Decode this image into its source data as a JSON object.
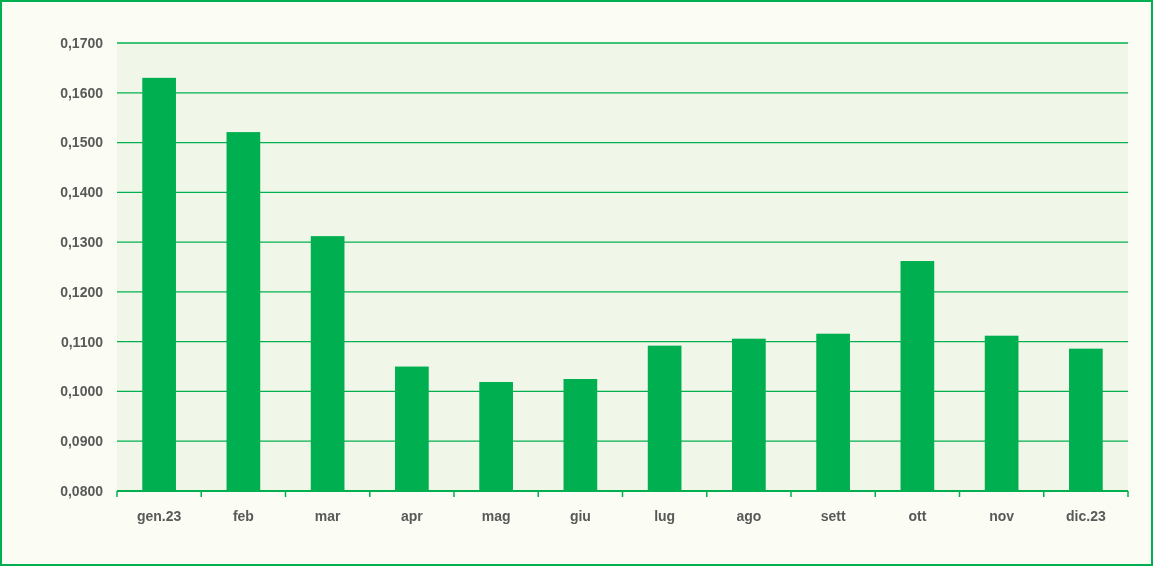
{
  "chart_data": {
    "type": "bar",
    "categories": [
      "gen.23",
      "feb",
      "mar",
      "apr",
      "mag",
      "giu",
      "lug",
      "ago",
      "sett",
      "ott",
      "nov",
      "dic.23"
    ],
    "values": [
      0.163,
      0.1521,
      0.1312,
      0.105,
      0.1019,
      0.1025,
      0.1092,
      0.1106,
      0.1116,
      0.1262,
      0.1112,
      0.1086
    ],
    "color": "#00b050",
    "ylim": [
      0.08,
      0.17
    ],
    "yticks": [
      {
        "value": 0.08,
        "label": "0,0800"
      },
      {
        "value": 0.09,
        "label": "0,0900"
      },
      {
        "value": 0.1,
        "label": "0,1000"
      },
      {
        "value": 0.11,
        "label": "0,1100"
      },
      {
        "value": 0.12,
        "label": "0,1200"
      },
      {
        "value": 0.13,
        "label": "0,1300"
      },
      {
        "value": 0.14,
        "label": "0,1400"
      },
      {
        "value": 0.15,
        "label": "0,1500"
      },
      {
        "value": 0.16,
        "label": "0,1600"
      },
      {
        "value": 0.17,
        "label": "0,1700"
      }
    ],
    "grid": "y"
  }
}
